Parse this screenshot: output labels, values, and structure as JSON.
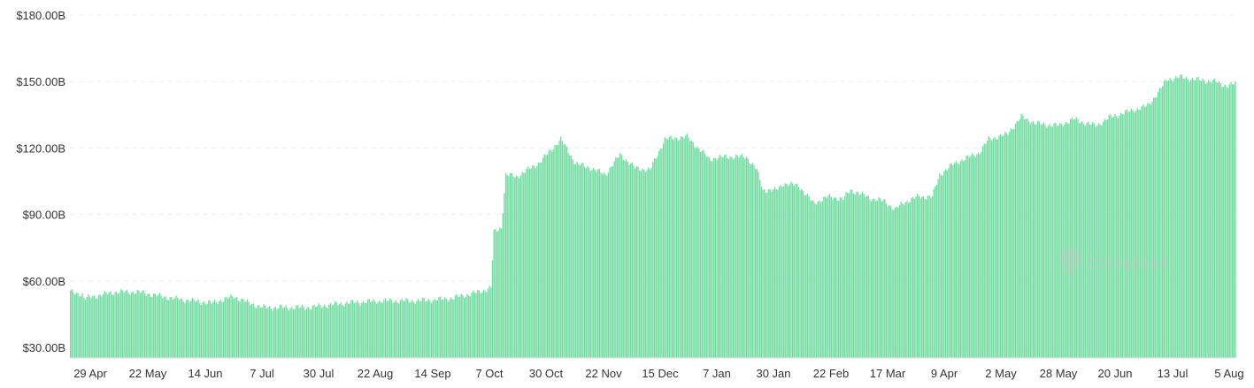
{
  "chart_data": {
    "type": "bar",
    "title": "",
    "xlabel": "",
    "ylabel": "",
    "ylim": [
      27,
      180
    ],
    "yticks": [
      {
        "value": 30,
        "label": "$30.00B"
      },
      {
        "value": 60,
        "label": "$60.00B"
      },
      {
        "value": 90,
        "label": "$90.00B"
      },
      {
        "value": 120,
        "label": "$120.00B"
      },
      {
        "value": 150,
        "label": "$150.00B"
      },
      {
        "value": 180,
        "label": "$180.00B"
      }
    ],
    "xticks": [
      "29 Apr",
      "22 May",
      "14 Jun",
      "7 Jul",
      "30 Jul",
      "22 Aug",
      "14 Sep",
      "7 Oct",
      "30 Oct",
      "22 Nov",
      "15 Dec",
      "7 Jan",
      "30 Jan",
      "22 Feb",
      "17 Mar",
      "9 Apr",
      "2 May",
      "28 May",
      "20 Jun",
      "13 Jul",
      "5 Aug"
    ],
    "grid": true,
    "bar_color": "#6fdb9f",
    "watermark": "coinglass",
    "series_anchors": [
      [
        0,
        55
      ],
      [
        8,
        54
      ],
      [
        9,
        52
      ],
      [
        16,
        53
      ],
      [
        30,
        55
      ],
      [
        45,
        55
      ],
      [
        70,
        52
      ],
      [
        95,
        50
      ],
      [
        110,
        53
      ],
      [
        120,
        50
      ],
      [
        130,
        48
      ],
      [
        160,
        48
      ],
      [
        185,
        50
      ],
      [
        210,
        51
      ],
      [
        235,
        51
      ],
      [
        255,
        52
      ],
      [
        275,
        55
      ],
      [
        283,
        57
      ],
      [
        285,
        82
      ],
      [
        290,
        84
      ],
      [
        293,
        108
      ],
      [
        300,
        107
      ],
      [
        305,
        109
      ],
      [
        315,
        113
      ],
      [
        322,
        118
      ],
      [
        330,
        124
      ],
      [
        340,
        113
      ],
      [
        350,
        111
      ],
      [
        360,
        108
      ],
      [
        370,
        117
      ],
      [
        380,
        111
      ],
      [
        390,
        110
      ],
      [
        400,
        124
      ],
      [
        415,
        125
      ],
      [
        430,
        115
      ],
      [
        440,
        116
      ],
      [
        455,
        116
      ],
      [
        462,
        110
      ],
      [
        466,
        101
      ],
      [
        475,
        101
      ],
      [
        480,
        104
      ],
      [
        490,
        103
      ],
      [
        500,
        95
      ],
      [
        510,
        98
      ],
      [
        520,
        97
      ],
      [
        525,
        101
      ],
      [
        540,
        97
      ],
      [
        548,
        96
      ],
      [
        555,
        92
      ],
      [
        560,
        95
      ],
      [
        570,
        98
      ],
      [
        580,
        98
      ],
      [
        585,
        108
      ],
      [
        595,
        113
      ],
      [
        605,
        116
      ],
      [
        612,
        118
      ],
      [
        618,
        124
      ],
      [
        630,
        126
      ],
      [
        640,
        134
      ],
      [
        650,
        131
      ],
      [
        665,
        130
      ],
      [
        675,
        133
      ],
      [
        690,
        130
      ],
      [
        700,
        134
      ],
      [
        715,
        137
      ],
      [
        725,
        139
      ],
      [
        732,
        145
      ],
      [
        738,
        151
      ],
      [
        748,
        152
      ],
      [
        755,
        151
      ],
      [
        770,
        150
      ],
      [
        778,
        148
      ],
      [
        784,
        149
      ]
    ]
  }
}
